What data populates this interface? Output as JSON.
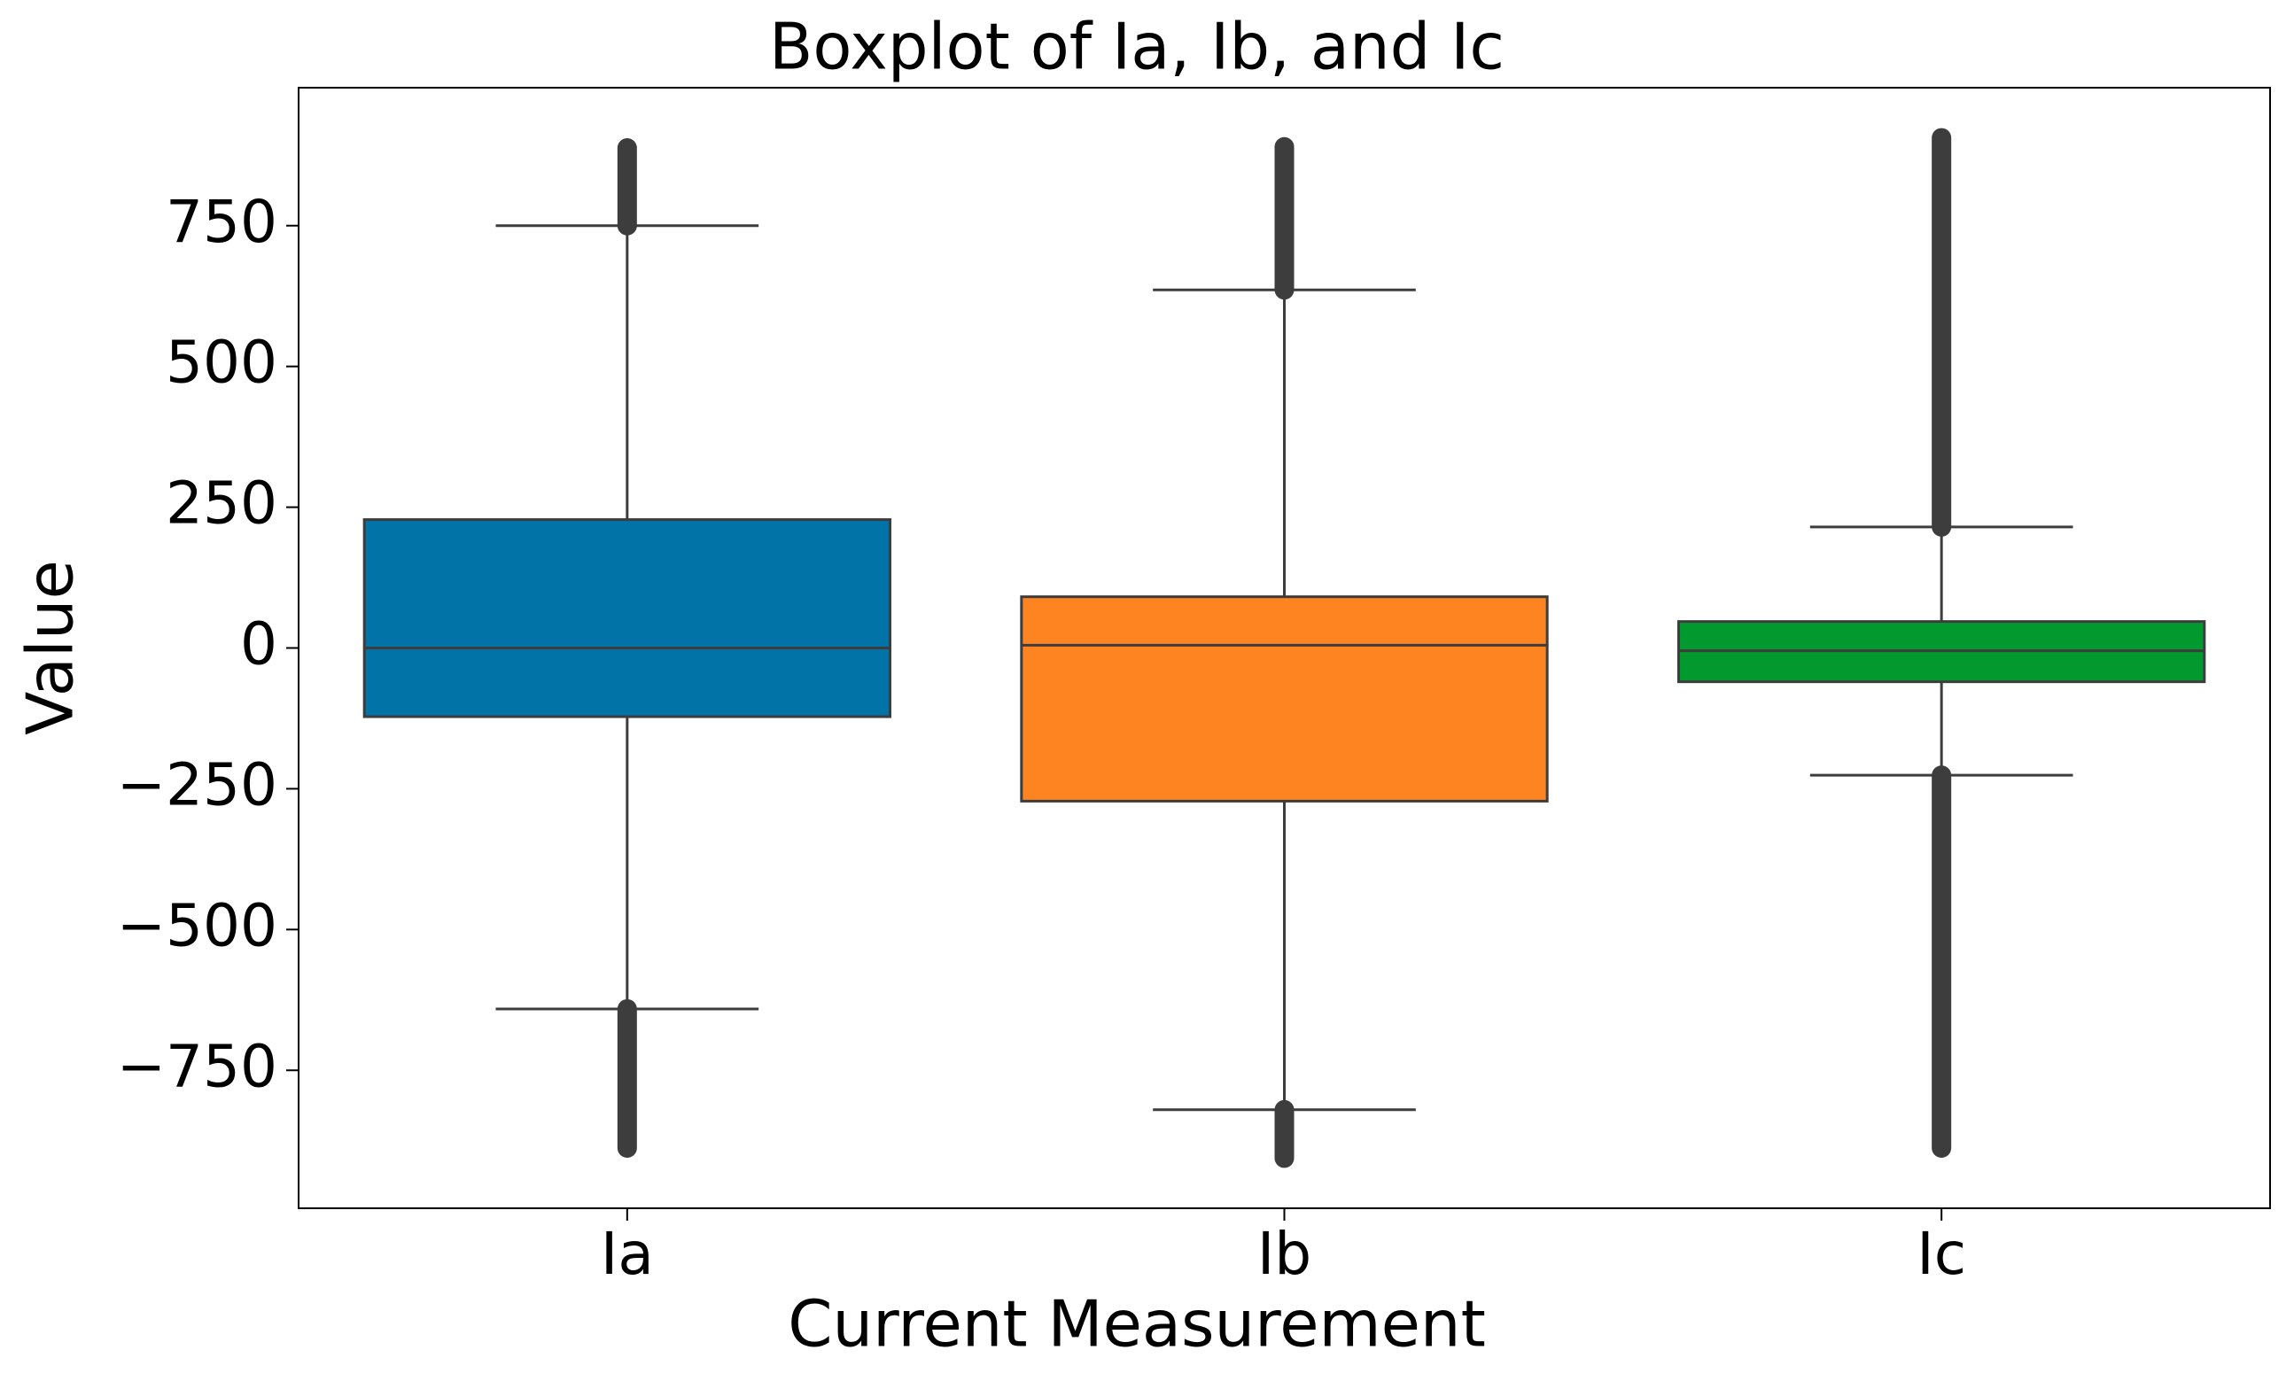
{
  "chart_data": {
    "type": "box",
    "title": "Boxplot of Ia, Ib, and Ic",
    "x_label": "Current Measurement",
    "y_label": "Value",
    "categories": [
      "Ia",
      "Ib",
      "Ic"
    ],
    "boxes": [
      {
        "whisker_low": -641,
        "q1": -122,
        "median": 0,
        "q3": 228,
        "whisker_high": 750,
        "outliers_low": [
          -888,
          -641
        ],
        "outliers_high": [
          750,
          888
        ],
        "color": "#0173a6"
      },
      {
        "whisker_low": -820,
        "q1": -272,
        "median": 5,
        "q3": 91,
        "whisker_high": 636,
        "outliers_low": [
          -906,
          -820
        ],
        "outliers_high": [
          636,
          890
        ],
        "color": "#fd8420"
      },
      {
        "whisker_low": -226,
        "q1": -60,
        "median": -5,
        "q3": 47,
        "whisker_high": 215,
        "outliers_low": [
          -888,
          -226
        ],
        "outliers_high": [
          215,
          906
        ],
        "color": "#029a2f"
      }
    ],
    "ylim": [
      -995,
      995
    ],
    "yticks": [
      {
        "value": -750,
        "label": "−750"
      },
      {
        "value": -500,
        "label": "−500"
      },
      {
        "value": -250,
        "label": "−250"
      },
      0,
      250,
      500,
      750
    ],
    "grid": false
  }
}
